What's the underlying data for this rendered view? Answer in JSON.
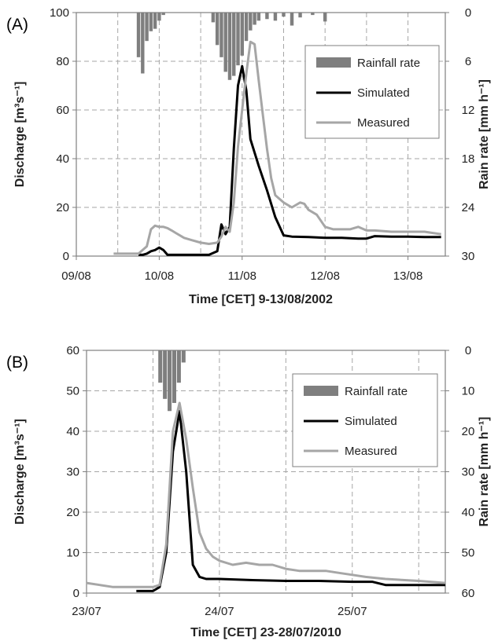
{
  "colors": {
    "rainfall": "#7f7f7f",
    "simulated": "#000000",
    "measured": "#a6a6a6",
    "grid": "#a6a6a6",
    "axis": "#7f7f7f"
  },
  "chart_data": [
    {
      "panel_label": "(A)",
      "type": "line",
      "xlabel": "Time [CET] 9-13/08/2002",
      "ylabel_left": "Discharge [m³s⁻¹]",
      "ylabel_right": "Rain rate [mm h⁻¹]",
      "xlim": [
        0,
        4.45
      ],
      "x_ticks": [
        {
          "x": 0,
          "label": "09/08"
        },
        {
          "x": 1,
          "label": "10/08"
        },
        {
          "x": 2,
          "label": "11/08"
        },
        {
          "x": 3,
          "label": "12/08"
        },
        {
          "x": 4,
          "label": "13/08"
        }
      ],
      "x_grid": [
        0.5,
        1,
        1.5,
        2,
        2.5,
        3,
        3.5,
        4
      ],
      "ylim_left": [
        0,
        100
      ],
      "y_ticks_left": [
        0,
        20,
        40,
        60,
        80,
        100
      ],
      "ylim_right": [
        30,
        0
      ],
      "y_ticks_right": [
        0,
        6,
        12,
        18,
        24,
        30
      ],
      "legend": [
        {
          "label": "Rainfall rate",
          "kind": "bar"
        },
        {
          "label": "Simulated",
          "kind": "line"
        },
        {
          "label": "Measured",
          "kind": "line"
        }
      ],
      "legend_position": "right",
      "rainfall": {
        "name": "Rainfall rate",
        "bar_width": 0.042,
        "x": [
          0.75,
          0.8,
          0.85,
          0.9,
          0.95,
          1.0,
          1.05,
          1.65,
          1.7,
          1.75,
          1.8,
          1.85,
          1.9,
          1.95,
          2.0,
          2.05,
          2.1,
          2.15,
          2.2,
          2.3,
          2.4,
          2.5,
          2.6,
          2.7,
          2.85,
          3.0
        ],
        "values": [
          5.5,
          7.5,
          3.5,
          2.3,
          2.0,
          1.0,
          0.3,
          1.2,
          4.0,
          5.5,
          7.3,
          8.3,
          7.8,
          6.5,
          5.3,
          3.5,
          2.2,
          1.5,
          1.0,
          0.8,
          1.0,
          0.5,
          1.6,
          0.6,
          0.3,
          1.1
        ]
      },
      "series": [
        {
          "name": "Simulated",
          "x": [
            0.75,
            0.8,
            0.85,
            0.9,
            0.95,
            1.0,
            1.05,
            1.1,
            1.2,
            1.4,
            1.6,
            1.7,
            1.75,
            1.8,
            1.85,
            1.9,
            1.95,
            2.0,
            2.05,
            2.1,
            2.2,
            2.3,
            2.4,
            2.5,
            2.6,
            2.8,
            3.0,
            3.2,
            3.4,
            3.5,
            3.6,
            3.8,
            4.0,
            4.2,
            4.4
          ],
          "y": [
            0.5,
            0.5,
            1,
            2,
            2.5,
            3.5,
            2.5,
            0.5,
            0.5,
            0.5,
            0.5,
            2,
            13,
            9,
            12,
            44,
            70,
            78,
            68,
            48,
            37,
            27,
            16,
            8.5,
            8,
            7.8,
            7.5,
            7.5,
            7.2,
            7.2,
            8.2,
            8,
            8,
            7.8,
            7.8
          ]
        },
        {
          "name": "Measured",
          "x": [
            0.45,
            0.6,
            0.75,
            0.85,
            0.9,
            0.95,
            1.0,
            1.05,
            1.1,
            1.15,
            1.2,
            1.3,
            1.4,
            1.5,
            1.6,
            1.7,
            1.75,
            1.8,
            1.85,
            1.9,
            1.95,
            2.0,
            2.05,
            2.1,
            2.15,
            2.2,
            2.25,
            2.3,
            2.35,
            2.4,
            2.5,
            2.6,
            2.7,
            2.75,
            2.8,
            2.9,
            3.0,
            3.1,
            3.2,
            3.3,
            3.4,
            3.5,
            3.6,
            3.8,
            4.0,
            4.2,
            4.3,
            4.4
          ],
          "y": [
            1,
            1,
            1,
            4,
            11,
            12.5,
            12,
            12,
            11.5,
            10.5,
            9.5,
            7.5,
            6.5,
            5.5,
            5,
            5.5,
            8,
            12,
            10,
            22,
            45,
            60,
            75,
            88,
            87,
            72,
            58,
            44,
            32,
            25,
            22,
            20,
            22,
            21.5,
            19,
            17,
            12,
            11,
            11,
            11,
            12,
            10.5,
            10.5,
            10,
            10,
            10,
            9.5,
            9
          ]
        }
      ]
    },
    {
      "panel_label": "(B)",
      "type": "line",
      "xlabel": "Time [CET] 23-28/07/2010",
      "ylabel_left": "Discharge [m³s⁻¹]",
      "ylabel_right": "Rain rate [mm h⁻¹]",
      "xlim": [
        0,
        5.4
      ],
      "x_ticks": [
        {
          "x": 0,
          "label": "23/07"
        },
        {
          "x": 2,
          "label": "24/07"
        },
        {
          "x": 4,
          "label": "25/07"
        }
      ],
      "x_grid": [
        1,
        2,
        3,
        4,
        5
      ],
      "ylim_left": [
        0,
        60
      ],
      "y_ticks_left": [
        0,
        10,
        20,
        30,
        40,
        50,
        60
      ],
      "ylim_right": [
        60,
        0
      ],
      "y_ticks_right": [
        0,
        10,
        20,
        30,
        40,
        50,
        60
      ],
      "legend": [
        {
          "label": "Rainfall rate",
          "kind": "bar"
        },
        {
          "label": "Simulated",
          "kind": "line"
        },
        {
          "label": "Measured",
          "kind": "line"
        }
      ],
      "legend_position": "right",
      "rainfall": {
        "name": "Rainfall rate",
        "bar_width": 0.06,
        "x": [
          1.11,
          1.18,
          1.25,
          1.32,
          1.39,
          1.46
        ],
        "values": [
          8,
          12,
          15,
          13,
          8,
          3
        ]
      },
      "series": [
        {
          "name": "Simulated",
          "x": [
            0.75,
            1.0,
            1.1,
            1.2,
            1.3,
            1.4,
            1.5,
            1.6,
            1.7,
            1.8,
            2.0,
            2.5,
            3.0,
            3.5,
            4.0,
            4.3,
            4.5,
            5.0,
            5.4
          ],
          "y": [
            0.5,
            0.5,
            1.5,
            10,
            35,
            45,
            30,
            7,
            4,
            3.5,
            3.5,
            3.2,
            3,
            3,
            2.8,
            2.8,
            2,
            2,
            2
          ]
        },
        {
          "name": "Measured",
          "x": [
            0.0,
            0.2,
            0.4,
            0.6,
            0.8,
            1.0,
            1.1,
            1.2,
            1.3,
            1.4,
            1.5,
            1.6,
            1.7,
            1.8,
            1.9,
            2.0,
            2.2,
            2.4,
            2.6,
            2.8,
            3.0,
            3.2,
            3.4,
            3.6,
            3.8,
            4.0,
            4.2,
            4.5,
            5.0,
            5.4
          ],
          "y": [
            2.5,
            2,
            1.5,
            1.5,
            1.5,
            1.5,
            2,
            12,
            40,
            47,
            38,
            26,
            15,
            11,
            9,
            8,
            7,
            7.5,
            7,
            7,
            6,
            5.5,
            5.5,
            5.5,
            5,
            4.5,
            4,
            3.5,
            3,
            2.5
          ]
        }
      ]
    }
  ]
}
